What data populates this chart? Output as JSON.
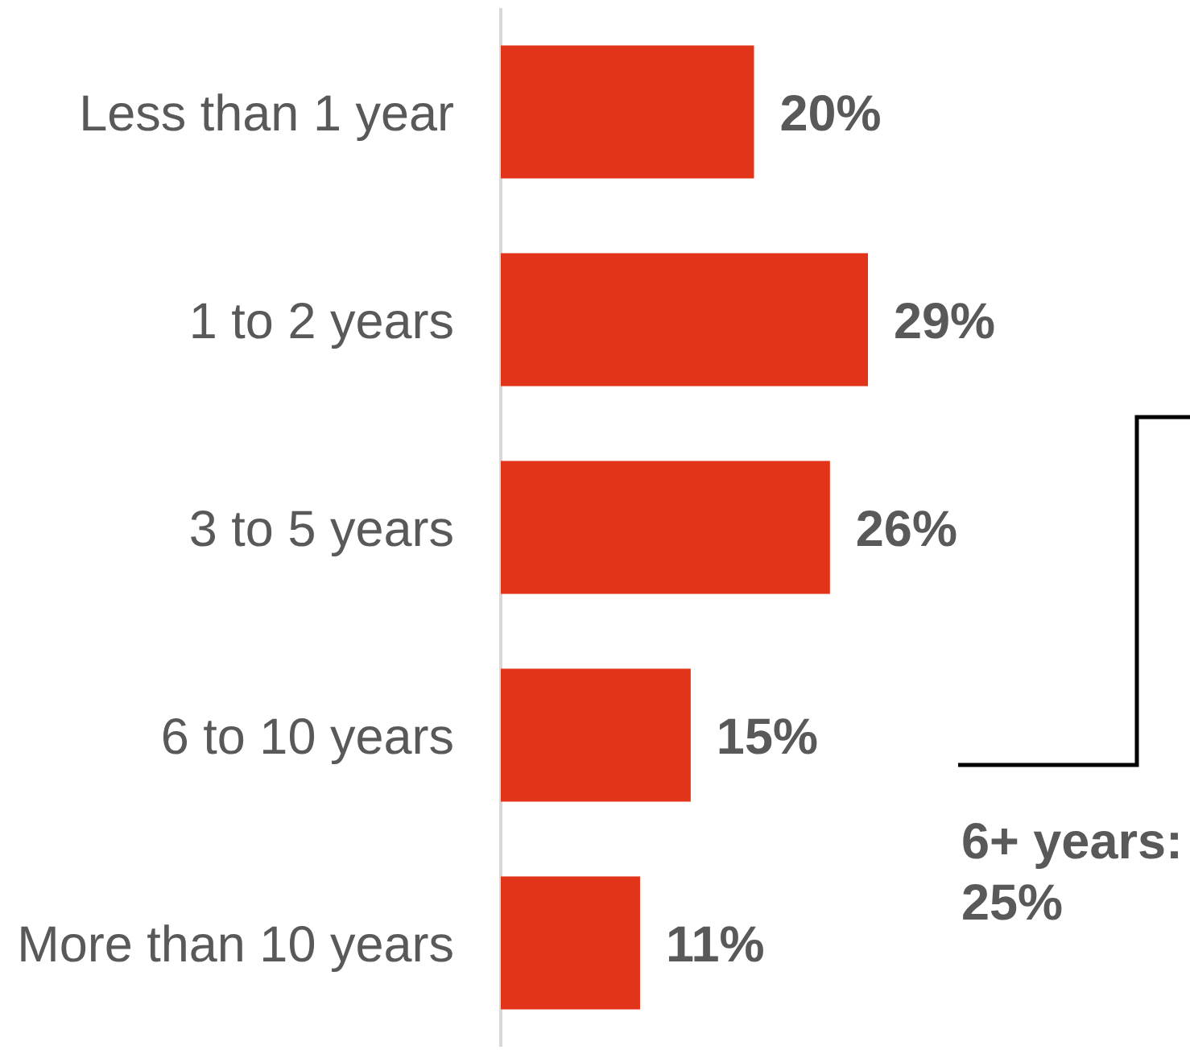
{
  "chart_data": {
    "type": "bar",
    "orientation": "horizontal",
    "categories": [
      "Less than 1 year",
      "1 to 2 years",
      "3 to 5 years",
      "6 to 10 years",
      "More than 10 years"
    ],
    "values": [
      20,
      29,
      26,
      15,
      11
    ],
    "color": "#e2341a",
    "value_labels": [
      "20%",
      "29%",
      "26%",
      "15%",
      "11%"
    ],
    "tick_labels": "y",
    "annotations": [
      "6+ years: 25%"
    ]
  }
}
